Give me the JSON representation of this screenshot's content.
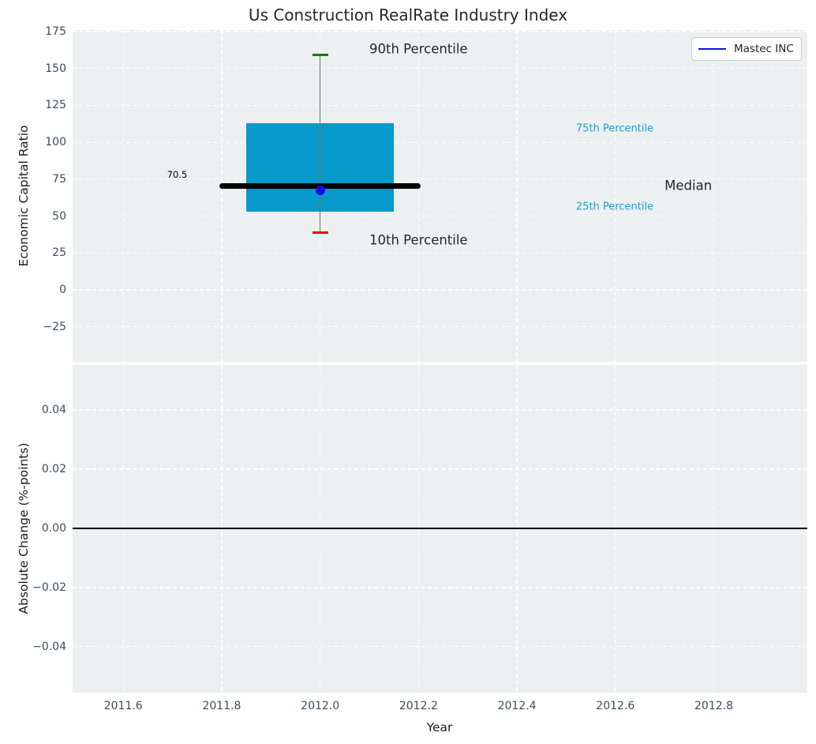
{
  "title": "Us Construction RealRate Industry Index",
  "legend": {
    "label": "Mastec INC",
    "line_color": "#0f0fe8",
    "position": "upper right"
  },
  "colors": {
    "figure_background": "#ffffff",
    "axes_background": "#edf0f1",
    "grid": "#ffffff",
    "box_fill": "#0899cb",
    "whisker": "#6e6e6e",
    "cap_90th": "#008000",
    "cap_10th": "#ee0000",
    "median_line": "#000000",
    "marker": "#0f0fe8",
    "zero_line": "#000000",
    "tick_label": "#3c4c5c",
    "text_dark": "#262626",
    "annotation_accent": "#1e9cd1"
  },
  "chart_data": [
    {
      "type": "boxplot",
      "title": "Us Construction RealRate Industry Index",
      "ylabel": "Economic Capital Ratio",
      "grid": true,
      "xlim": [
        2011.497,
        2012.99
      ],
      "ylim": [
        -48.7,
        176.1
      ],
      "xticks": {
        "values": [
          2011.6,
          2011.8,
          2012.0,
          2012.2,
          2012.4,
          2012.6,
          2012.8
        ],
        "labels": [
          "2011.6",
          "2011.8",
          "2012.0",
          "2012.2",
          "2012.4",
          "2012.6",
          "2012.8"
        ],
        "labels_visible": false
      },
      "yticks": {
        "values": [
          175,
          150,
          125,
          100,
          75,
          50,
          25,
          0,
          -25
        ],
        "labels": [
          "175",
          "150",
          "125",
          "100",
          "75",
          "50",
          "25",
          "0",
          "−25"
        ]
      },
      "box": {
        "x": 2012.0,
        "p10": 39,
        "p25": 53,
        "median": 70.5,
        "p75": 113,
        "p90": 159.5,
        "box_halfwidth": 0.15,
        "median_halfwidth": 0.205,
        "cap_halfwidth": 0.016,
        "marker": {
          "name": "Mastec INC",
          "x": 2012.0,
          "y": 67.5
        }
      },
      "annotations": [
        {
          "text": "90th Percentile",
          "x": 2012.1,
          "y": 163,
          "size": 16.5,
          "color": "#262626",
          "ha": "left"
        },
        {
          "text": "10th Percentile",
          "x": 2012.1,
          "y": 33.5,
          "size": 16.5,
          "color": "#262626",
          "ha": "left"
        },
        {
          "text": "75th Percentile",
          "x": 2012.52,
          "y": 109,
          "size": 13,
          "color": "#1e9cd1",
          "ha": "left"
        },
        {
          "text": "25th Percentile",
          "x": 2012.52,
          "y": 56,
          "size": 13,
          "color": "#1e9cd1",
          "ha": "left"
        },
        {
          "text": "Median",
          "x": 2012.7,
          "y": 70.5,
          "size": 16.5,
          "color": "#262626",
          "ha": "left"
        },
        {
          "text": "70.5",
          "x": 2011.73,
          "y": 78,
          "size": 11.5,
          "color": "#000000",
          "ha": "right"
        }
      ]
    },
    {
      "type": "line",
      "xlabel": "Year",
      "ylabel": "Absolute Change (%-points)",
      "grid": true,
      "xlim": [
        2011.497,
        2012.99
      ],
      "ylim": [
        -0.0555,
        0.0552
      ],
      "xticks": {
        "values": [
          2011.6,
          2011.8,
          2012.0,
          2012.2,
          2012.4,
          2012.6,
          2012.8
        ],
        "labels": [
          "2011.6",
          "2011.8",
          "2012.0",
          "2012.2",
          "2012.4",
          "2012.6",
          "2012.8"
        ],
        "labels_visible": true
      },
      "yticks": {
        "values": [
          0.04,
          0.02,
          0.0,
          -0.02,
          -0.04
        ],
        "labels": [
          "0.04",
          "0.02",
          "0.00",
          "−0.02",
          "−0.04"
        ]
      },
      "series": [
        {
          "name": "zero-line",
          "type": "hline",
          "y": 0.0
        }
      ]
    }
  ]
}
